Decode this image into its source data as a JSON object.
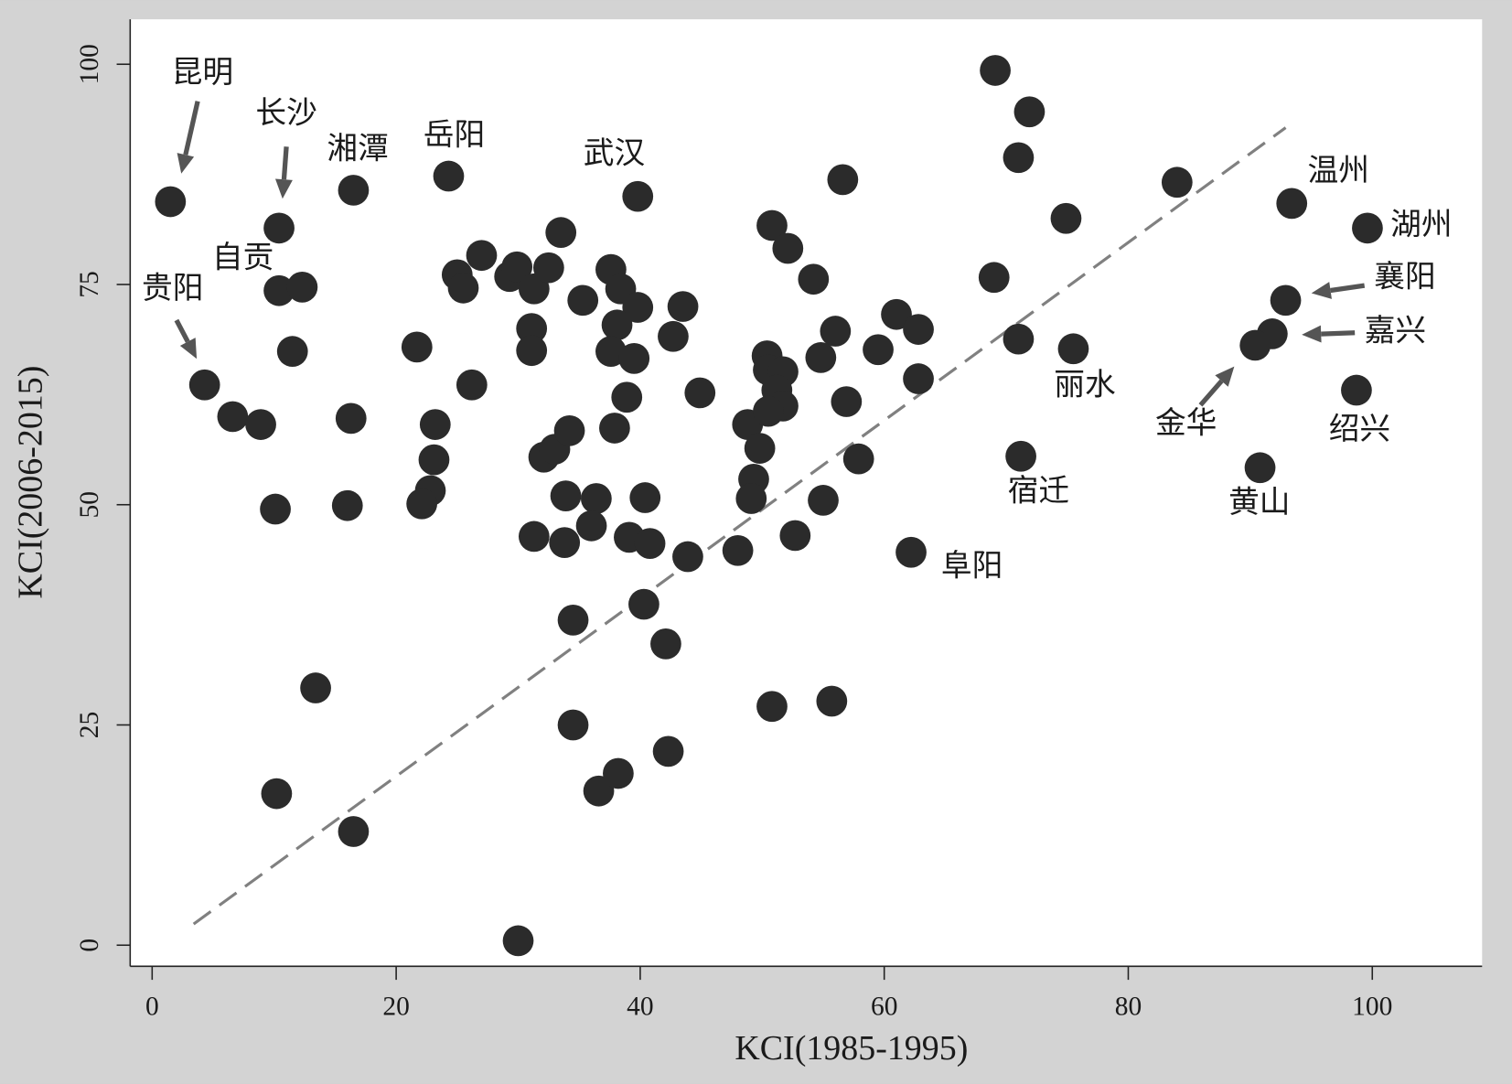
{
  "chart_data": {
    "type": "scatter",
    "x_label": "KCI(1985-1995)",
    "y_label": "KCI(2006-2015)",
    "x": [
      1.5,
      10.4,
      16.5,
      24.3,
      39.8,
      10.4,
      12.3,
      4.3,
      6.6,
      8.9,
      11.5,
      10.1,
      16.0,
      16.3,
      13.4,
      10.2,
      16.5,
      21.7,
      23.2,
      23.1,
      22.8,
      22.1,
      25.0,
      25.5,
      27.0,
      26.2,
      29.3,
      29.9,
      31.3,
      32.5,
      33.5,
      31.1,
      31.1,
      35.3,
      37.6,
      38.4,
      39.8,
      38.1,
      37.6,
      39.5,
      38.9,
      37.9,
      32.1,
      33.0,
      34.2,
      33.9,
      36.4,
      31.3,
      33.8,
      36.0,
      39.1,
      40.8,
      40.4,
      34.5,
      34.5,
      36.6,
      38.2,
      40.3,
      42.1,
      42.3,
      30.0,
      43.5,
      42.7,
      44.9,
      43.9,
      48.0,
      48.8,
      49.8,
      49.3,
      49.1,
      50.8,
      52.1,
      50.4,
      50.5,
      51.7,
      51.2,
      51.7,
      50.5,
      52.7,
      55.0,
      50.8,
      55.7,
      54.2,
      56.6,
      56.0,
      54.8,
      56.9,
      57.9,
      59.5,
      61.0,
      62.8,
      62.8,
      62.2,
      69.1,
      71.9,
      71.0,
      69.0,
      71.0,
      75.5,
      71.2,
      74.9,
      84.0,
      93.4,
      99.6,
      92.9,
      91.8,
      90.4,
      98.7,
      90.8
    ],
    "values": [
      84.4,
      81.4,
      85.7,
      87.3,
      85.0,
      74.3,
      74.7,
      63.6,
      60.0,
      59.1,
      67.4,
      49.5,
      49.9,
      59.8,
      29.2,
      17.2,
      12.9,
      67.9,
      59.1,
      55.1,
      51.6,
      50.1,
      76.1,
      74.6,
      78.3,
      63.6,
      75.9,
      77.0,
      74.5,
      76.9,
      80.9,
      70.0,
      67.5,
      73.2,
      76.7,
      74.5,
      72.4,
      70.4,
      67.4,
      66.6,
      62.2,
      58.7,
      55.4,
      56.3,
      58.4,
      51.0,
      50.7,
      46.4,
      45.7,
      47.6,
      46.3,
      45.6,
      50.8,
      36.9,
      25.0,
      17.5,
      19.5,
      38.7,
      34.2,
      22.0,
      0.5,
      72.5,
      69.1,
      62.7,
      44.1,
      44.8,
      59.1,
      56.4,
      52.9,
      50.7,
      81.7,
      79.1,
      66.9,
      65.3,
      65.1,
      63.0,
      61.2,
      60.6,
      46.5,
      50.5,
      27.1,
      27.7,
      75.6,
      86.9,
      69.7,
      66.7,
      61.7,
      55.2,
      67.6,
      71.6,
      69.9,
      64.3,
      44.6,
      99.3,
      94.6,
      89.4,
      75.8,
      68.8,
      67.7,
      55.5,
      82.5,
      86.6,
      84.2,
      81.4,
      73.2,
      69.4,
      68.1,
      63.0,
      54.2
    ],
    "color": "#2b2b2b",
    "reference_line": {
      "x": [
        3.4,
        92.9
      ],
      "y": [
        2.4,
        92.8
      ],
      "color": "#808080",
      "dashed": true
    },
    "annotations": [
      "昆明",
      "长沙",
      "湘潭",
      "岳阳",
      "武汉",
      "自贡",
      "贵阳",
      "温州",
      "湖州",
      "襄阳",
      "嘉兴",
      "丽水",
      "金华",
      "绍兴",
      "宿迁",
      "黄山",
      "阜阳"
    ],
    "xlim": [
      -1.8,
      109.0
    ],
    "ylim": [
      -2.4,
      105.1
    ],
    "xticks": [
      0,
      20,
      40,
      60,
      80,
      100
    ],
    "yticks": [
      0,
      25,
      50,
      75,
      100
    ],
    "grid": false
  }
}
